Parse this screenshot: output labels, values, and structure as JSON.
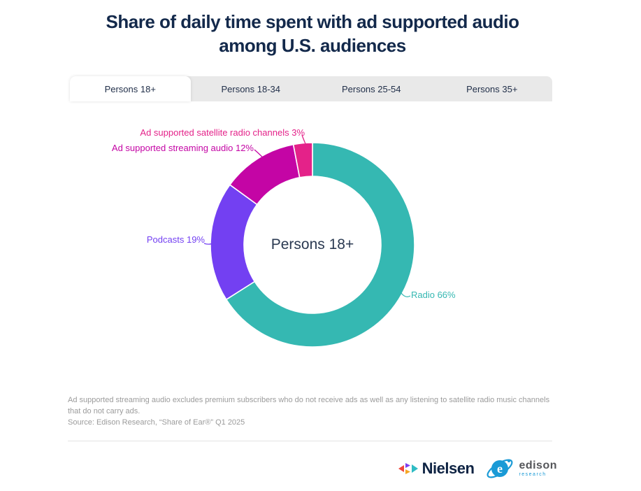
{
  "title": "Share of daily time spent with ad supported audio among U.S. audiences",
  "tabs": [
    {
      "label": "Persons 18+",
      "active": true
    },
    {
      "label": "Persons 18-34",
      "active": false
    },
    {
      "label": "Persons 25-54",
      "active": false
    },
    {
      "label": "Persons 35+",
      "active": false
    }
  ],
  "chart_data": {
    "type": "pie",
    "subtype": "donut",
    "title": "Share of daily time spent with ad supported audio among U.S. audiences",
    "center_label": "Persons 18+",
    "units": "%",
    "direction": "clockwise",
    "start_angle_deg": 0,
    "legend_position": "callout-labels",
    "series": [
      {
        "name": "Radio",
        "value": 66,
        "label": "Radio 66%",
        "color": "#35b8b2"
      },
      {
        "name": "Podcasts",
        "value": 19,
        "label": "Podcasts 19%",
        "color": "#7340f2"
      },
      {
        "name": "Ad supported streaming audio",
        "value": 12,
        "label": "Ad supported streaming audio 12%",
        "color": "#c405a5"
      },
      {
        "name": "Ad supported satellite radio channels",
        "value": 3,
        "label": "Ad supported satellite radio channels 3%",
        "color": "#e42289"
      }
    ]
  },
  "footnote": {
    "note": "Ad supported streaming audio excludes premium subscribers who do not receive ads as well as any listening to satellite radio music channels that do not carry ads.",
    "source": "Source: Edison Research, “Share of Ear®” Q1 2025"
  },
  "footer": {
    "nielsen_logo_text": "Nielsen",
    "edison_logo_text": "edison",
    "edison_logo_subtext": "research"
  },
  "colors": {
    "title_text": "#13294b",
    "tab_text": "#22304a",
    "tabbar_bg": "#e9e9e9",
    "center_label_text": "#2b3a52",
    "footnote_text": "#9b9b9b",
    "divider": "#e3e3e3"
  }
}
